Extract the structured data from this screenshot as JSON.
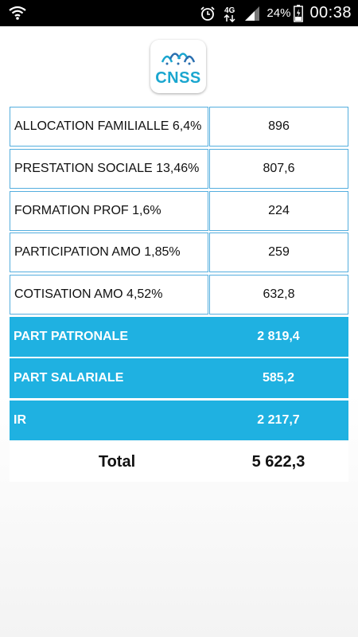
{
  "status_bar": {
    "battery_percent": "24%",
    "time": "00:38",
    "network_label": "4G",
    "icons": [
      "wifi-icon",
      "alarm-icon",
      "network-4g-icon",
      "signal-icon",
      "battery-icon"
    ]
  },
  "logo": {
    "text": "CNSS",
    "color": "#1aa6cf"
  },
  "table": {
    "rows": [
      {
        "label": "ALLOCATION FAMILIALLE 6,4%",
        "value": "896"
      },
      {
        "label": "PRESTATION SOCIALE 13,46%",
        "value": "807,6"
      },
      {
        "label": "FORMATION PROF 1,6%",
        "value": "224"
      },
      {
        "label": "PARTICIPATION AMO 1,85%",
        "value": "259"
      },
      {
        "label": "COTISATION AMO 4,52%",
        "value": "632,8"
      }
    ],
    "summary": [
      {
        "label": "PART PATRONALE",
        "value": "2 819,4"
      },
      {
        "label": "PART SALARIALE",
        "value": "585,2"
      },
      {
        "label": "IR",
        "value": "2 217,7"
      }
    ],
    "total": {
      "label": "Total",
      "value": "5 622,3"
    }
  },
  "colors": {
    "accent": "#1fb1e1",
    "border": "#54aede"
  }
}
